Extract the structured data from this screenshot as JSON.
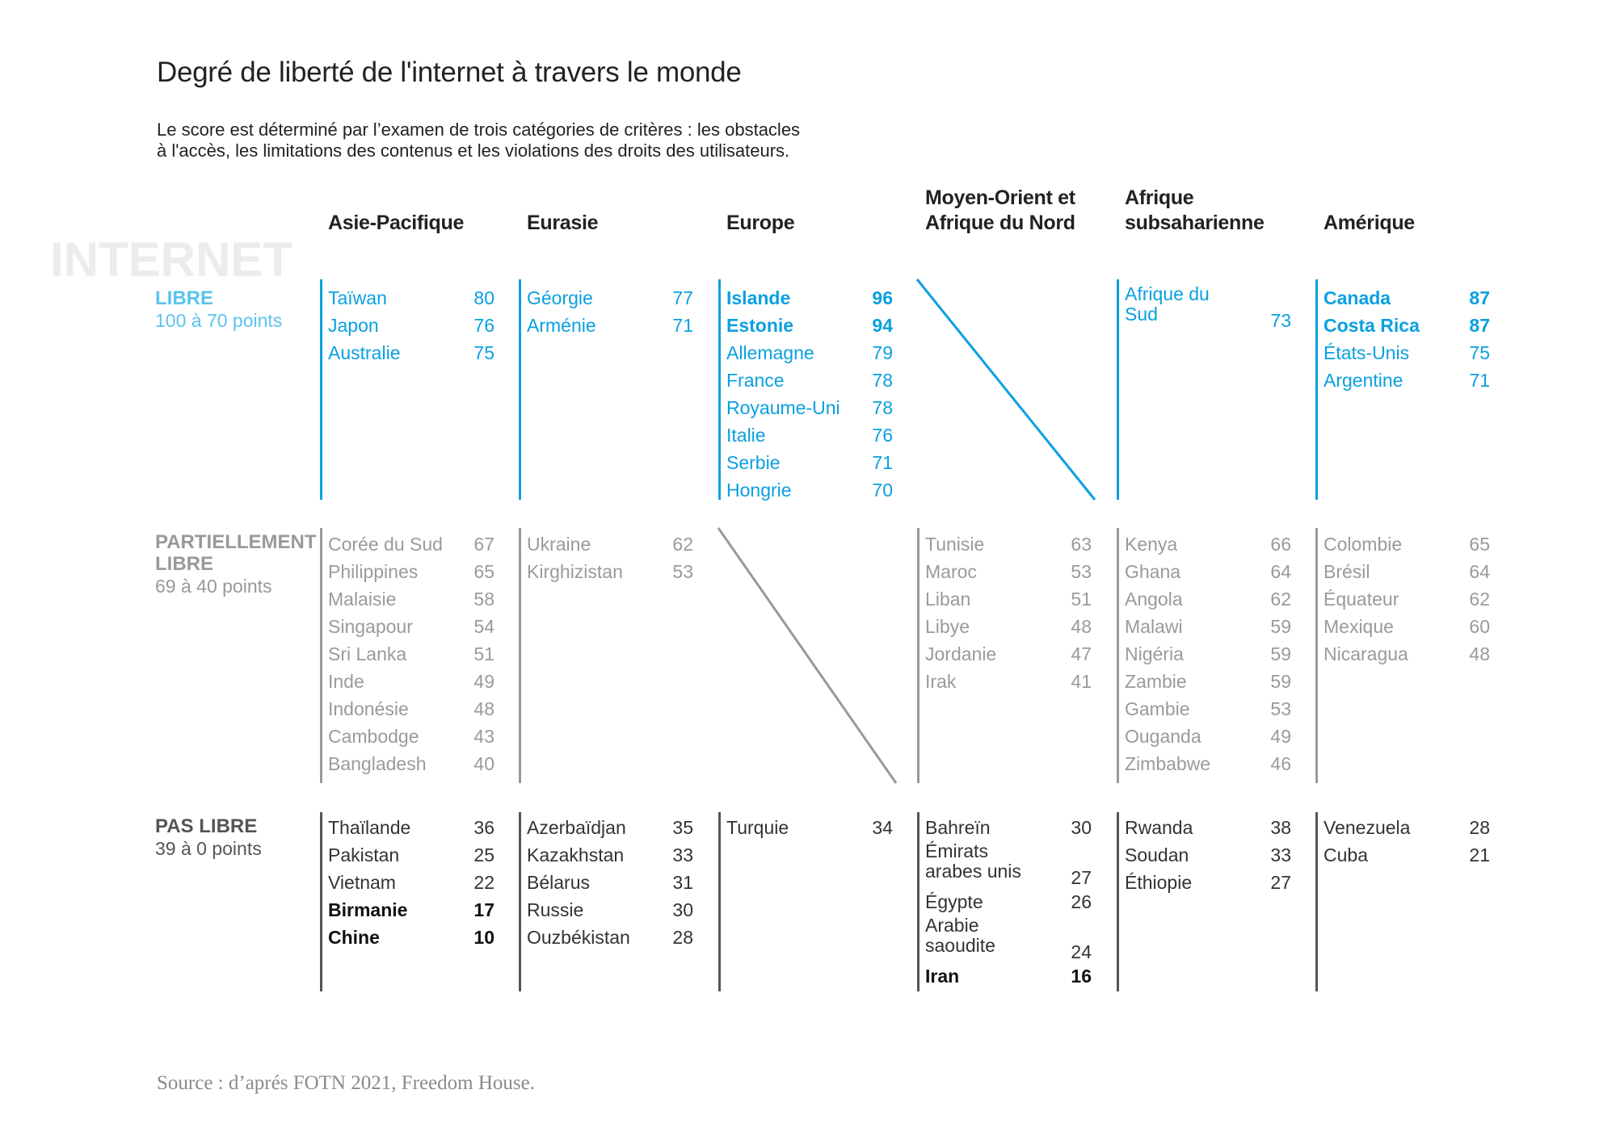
{
  "title": "Degré de liberté de l'internet à travers le monde",
  "subtitle": [
    "Le score est déterminé par l’examen de trois catégories de critères : les obstacles",
    "à l'accès, les limitations des contenus et les violations des droits des utilisateurs."
  ],
  "watermark": "INTERNET",
  "colors": {
    "libre": "#0aa0e0",
    "libre_label": "#5cc3ee",
    "partiel": "#9a9a9a",
    "partiel_label": "#999999",
    "pas_libre": "#333333",
    "pas_libre_label": "#555555",
    "bold_dark": "#111111"
  },
  "regions": [
    "Asie-Pacifique",
    "Eurasie",
    "Europe",
    "Moyen-Orient et Afrique du Nord",
    "Afrique subsaharienne",
    "Amérique"
  ],
  "sections": [
    {
      "key": "libre",
      "label": "LIBRE",
      "range": "100 à 70 points",
      "columns": [
        [
          {
            "name": "Taïwan",
            "score": "80"
          },
          {
            "name": "Japon",
            "score": "76"
          },
          {
            "name": "Australie",
            "score": "75"
          }
        ],
        [
          {
            "name": "Géorgie",
            "score": "77"
          },
          {
            "name": "Arménie",
            "score": "71"
          }
        ],
        [
          {
            "name": "Islande",
            "score": "96",
            "bold": true
          },
          {
            "name": "Estonie",
            "score": "94",
            "bold": true
          },
          {
            "name": "Allemagne",
            "score": "79"
          },
          {
            "name": "France",
            "score": "78"
          },
          {
            "name": "Royaume-Uni",
            "score": "78"
          },
          {
            "name": "Italie",
            "score": "76"
          },
          {
            "name": "Serbie",
            "score": "71"
          },
          {
            "name": "Hongrie",
            "score": "70"
          }
        ],
        null,
        [
          {
            "name": "Afrique du Sud",
            "score": "73",
            "multi": true
          }
        ],
        [
          {
            "name": "Canada",
            "score": "87",
            "bold": true
          },
          {
            "name": "Costa Rica",
            "score": "87",
            "bold": true
          },
          {
            "name": "États-Unis",
            "score": "75"
          },
          {
            "name": "Argentine",
            "score": "71"
          }
        ]
      ]
    },
    {
      "key": "partiel",
      "label": "PARTIELLEMENT LIBRE",
      "range": "69 à 40 points",
      "columns": [
        [
          {
            "name": "Corée du Sud",
            "score": "67"
          },
          {
            "name": "Philippines",
            "score": "65"
          },
          {
            "name": "Malaisie",
            "score": "58"
          },
          {
            "name": "Singapour",
            "score": "54"
          },
          {
            "name": "Sri Lanka",
            "score": "51"
          },
          {
            "name": "Inde",
            "score": "49"
          },
          {
            "name": "Indonésie",
            "score": "48"
          },
          {
            "name": "Cambodge",
            "score": "43"
          },
          {
            "name": "Bangladesh",
            "score": "40"
          }
        ],
        [
          {
            "name": "Ukraine",
            "score": "62"
          },
          {
            "name": "Kirghizistan",
            "score": "53"
          }
        ],
        null,
        [
          {
            "name": "Tunisie",
            "score": "63"
          },
          {
            "name": "Maroc",
            "score": "53"
          },
          {
            "name": "Liban",
            "score": "51"
          },
          {
            "name": "Libye",
            "score": "48"
          },
          {
            "name": "Jordanie",
            "score": "47"
          },
          {
            "name": "Irak",
            "score": "41"
          }
        ],
        [
          {
            "name": "Kenya",
            "score": "66"
          },
          {
            "name": "Ghana",
            "score": "64"
          },
          {
            "name": "Angola",
            "score": "62"
          },
          {
            "name": "Malawi",
            "score": "59"
          },
          {
            "name": "Nigéria",
            "score": "59"
          },
          {
            "name": "Zambie",
            "score": "59"
          },
          {
            "name": "Gambie",
            "score": "53"
          },
          {
            "name": "Ouganda",
            "score": "49"
          },
          {
            "name": "Zimbabwe",
            "score": "46"
          }
        ],
        [
          {
            "name": "Colombie",
            "score": "65"
          },
          {
            "name": "Brésil",
            "score": "64"
          },
          {
            "name": "Équateur",
            "score": "62"
          },
          {
            "name": "Mexique",
            "score": "60"
          },
          {
            "name": "Nicaragua",
            "score": "48"
          }
        ]
      ]
    },
    {
      "key": "pas_libre",
      "label": "PAS LIBRE",
      "range": "39 à 0 points",
      "columns": [
        [
          {
            "name": "Thaïlande",
            "score": "36"
          },
          {
            "name": "Pakistan",
            "score": "25"
          },
          {
            "name": "Vietnam",
            "score": "22"
          },
          {
            "name": "Birmanie",
            "score": "17",
            "bold": true
          },
          {
            "name": "Chine",
            "score": "10",
            "bold": true
          }
        ],
        [
          {
            "name": "Azerbaïdjan",
            "score": "35"
          },
          {
            "name": "Kazakhstan",
            "score": "33"
          },
          {
            "name": "Bélarus",
            "score": "31"
          },
          {
            "name": "Russie",
            "score": "30"
          },
          {
            "name": "Ouzbékistan",
            "score": "28"
          }
        ],
        [
          {
            "name": "Turquie",
            "score": "34"
          }
        ],
        [
          {
            "name": "Bahreïn",
            "score": "30"
          },
          {
            "name": "Émirats arabes unis",
            "score": "27",
            "multi": true
          },
          {
            "name": "Égypte",
            "score": "26"
          },
          {
            "name": "Arabie saoudite",
            "score": "24",
            "multi": true
          },
          {
            "name": "Iran",
            "score": "16",
            "bold": true
          }
        ],
        [
          {
            "name": "Rwanda",
            "score": "38"
          },
          {
            "name": "Soudan",
            "score": "33"
          },
          {
            "name": "Éthiopie",
            "score": "27"
          }
        ],
        [
          {
            "name": "Venezuela",
            "score": "28"
          },
          {
            "name": "Cuba",
            "score": "21"
          }
        ]
      ]
    }
  ],
  "source": "Source : d’aprés FOTN 2021, Freedom House."
}
